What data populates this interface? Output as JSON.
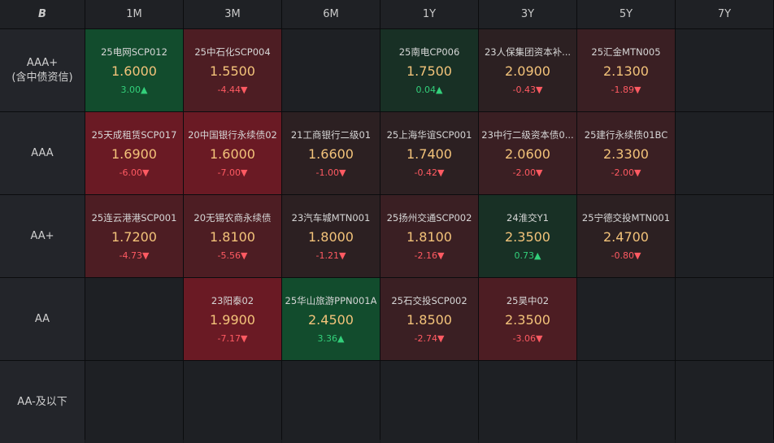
{
  "header": {
    "logo": "B",
    "tenors": [
      "1M",
      "3M",
      "6M",
      "1Y",
      "3Y",
      "5Y",
      "7Y"
    ]
  },
  "rows": [
    {
      "label": "AAA+",
      "sublabel": "(含中债资信)",
      "cells": [
        {
          "name": "25电网SCP012",
          "rate": "1.6000",
          "change": "3.00▲",
          "dir": "up",
          "shade": "g1"
        },
        {
          "name": "25中石化SCP004",
          "rate": "1.5500",
          "change": "-4.44▼",
          "dir": "down",
          "shade": "r2"
        },
        null,
        {
          "name": "25南电CP006",
          "rate": "1.7500",
          "change": "0.04▲",
          "dir": "up",
          "shade": "g2"
        },
        {
          "name": "23人保集团资本补...",
          "rate": "2.0900",
          "change": "-0.43▼",
          "dir": "down",
          "shade": "r4"
        },
        {
          "name": "25汇金MTN005",
          "rate": "2.1300",
          "change": "-1.89▼",
          "dir": "down",
          "shade": "r3"
        },
        null
      ]
    },
    {
      "label": "AAA",
      "sublabel": "",
      "cells": [
        {
          "name": "25天成租赁SCP017",
          "rate": "1.6900",
          "change": "-6.00▼",
          "dir": "down",
          "shade": "r1"
        },
        {
          "name": "20中国银行永续债02",
          "rate": "1.6000",
          "change": "-7.00▼",
          "dir": "down",
          "shade": "r1"
        },
        {
          "name": "21工商银行二级01",
          "rate": "1.6600",
          "change": "-1.00▼",
          "dir": "down",
          "shade": "r4"
        },
        {
          "name": "25上海华谊SCP001",
          "rate": "1.7400",
          "change": "-0.42▼",
          "dir": "down",
          "shade": "r4"
        },
        {
          "name": "23中行二级资本债0...",
          "rate": "2.0600",
          "change": "-2.00▼",
          "dir": "down",
          "shade": "r3"
        },
        {
          "name": "25建行永续债01BC",
          "rate": "2.3300",
          "change": "-2.00▼",
          "dir": "down",
          "shade": "r3"
        },
        null
      ]
    },
    {
      "label": "AA+",
      "sublabel": "",
      "cells": [
        {
          "name": "25连云港港SCP001",
          "rate": "1.7200",
          "change": "-4.73▼",
          "dir": "down",
          "shade": "r2"
        },
        {
          "name": "20无锡农商永续债",
          "rate": "1.8100",
          "change": "-5.56▼",
          "dir": "down",
          "shade": "r2"
        },
        {
          "name": "23汽车城MTN001",
          "rate": "1.8000",
          "change": "-1.21▼",
          "dir": "down",
          "shade": "r4"
        },
        {
          "name": "25扬州交通SCP002",
          "rate": "1.8100",
          "change": "-2.16▼",
          "dir": "down",
          "shade": "r3"
        },
        {
          "name": "24淮交Y1",
          "rate": "2.3500",
          "change": "0.73▲",
          "dir": "up",
          "shade": "g2"
        },
        {
          "name": "25宁德交投MTN001",
          "rate": "2.4700",
          "change": "-0.80▼",
          "dir": "down",
          "shade": "r4"
        },
        null
      ]
    },
    {
      "label": "AA",
      "sublabel": "",
      "cells": [
        null,
        {
          "name": "23阳泰02",
          "rate": "1.9900",
          "change": "-7.17▼",
          "dir": "down",
          "shade": "r1"
        },
        {
          "name": "25华山旅游PPN001A",
          "rate": "2.4500",
          "change": "3.36▲",
          "dir": "up",
          "shade": "g1"
        },
        {
          "name": "25石交投SCP002",
          "rate": "1.8500",
          "change": "-2.74▼",
          "dir": "down",
          "shade": "r3"
        },
        {
          "name": "25昊中02",
          "rate": "2.3500",
          "change": "-3.06▼",
          "dir": "down",
          "shade": "r2"
        },
        null,
        null
      ]
    },
    {
      "label": "AA-及以下",
      "sublabel": "",
      "cells": [
        null,
        null,
        null,
        null,
        null,
        null,
        null
      ]
    }
  ]
}
